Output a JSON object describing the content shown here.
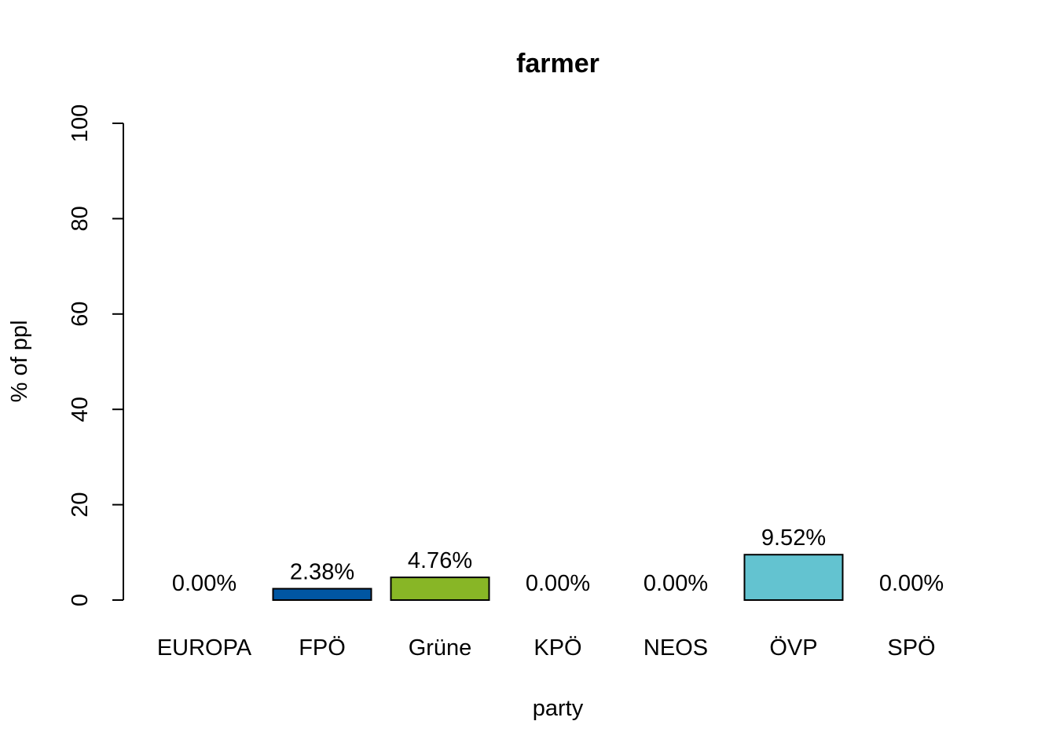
{
  "chart_data": {
    "type": "bar",
    "title": "farmer",
    "xlabel": "party",
    "ylabel": "% of ppl",
    "ylim": [
      0,
      100
    ],
    "yticks": [
      0,
      20,
      40,
      60,
      80,
      100
    ],
    "grid": false,
    "categories": [
      "EUROPA",
      "FPÖ",
      "Grüne",
      "KPÖ",
      "NEOS",
      "ÖVP",
      "SPÖ"
    ],
    "values": [
      0.0,
      2.38,
      4.76,
      0.0,
      0.0,
      9.52,
      0.0
    ],
    "data_labels": [
      "0.00%",
      "2.38%",
      "4.76%",
      "0.00%",
      "0.00%",
      "9.52%",
      "0.00%"
    ],
    "colors": [
      "#000000",
      "#0056A2",
      "#88B626",
      "#000000",
      "#000000",
      "#63C3D0",
      "#000000"
    ]
  }
}
